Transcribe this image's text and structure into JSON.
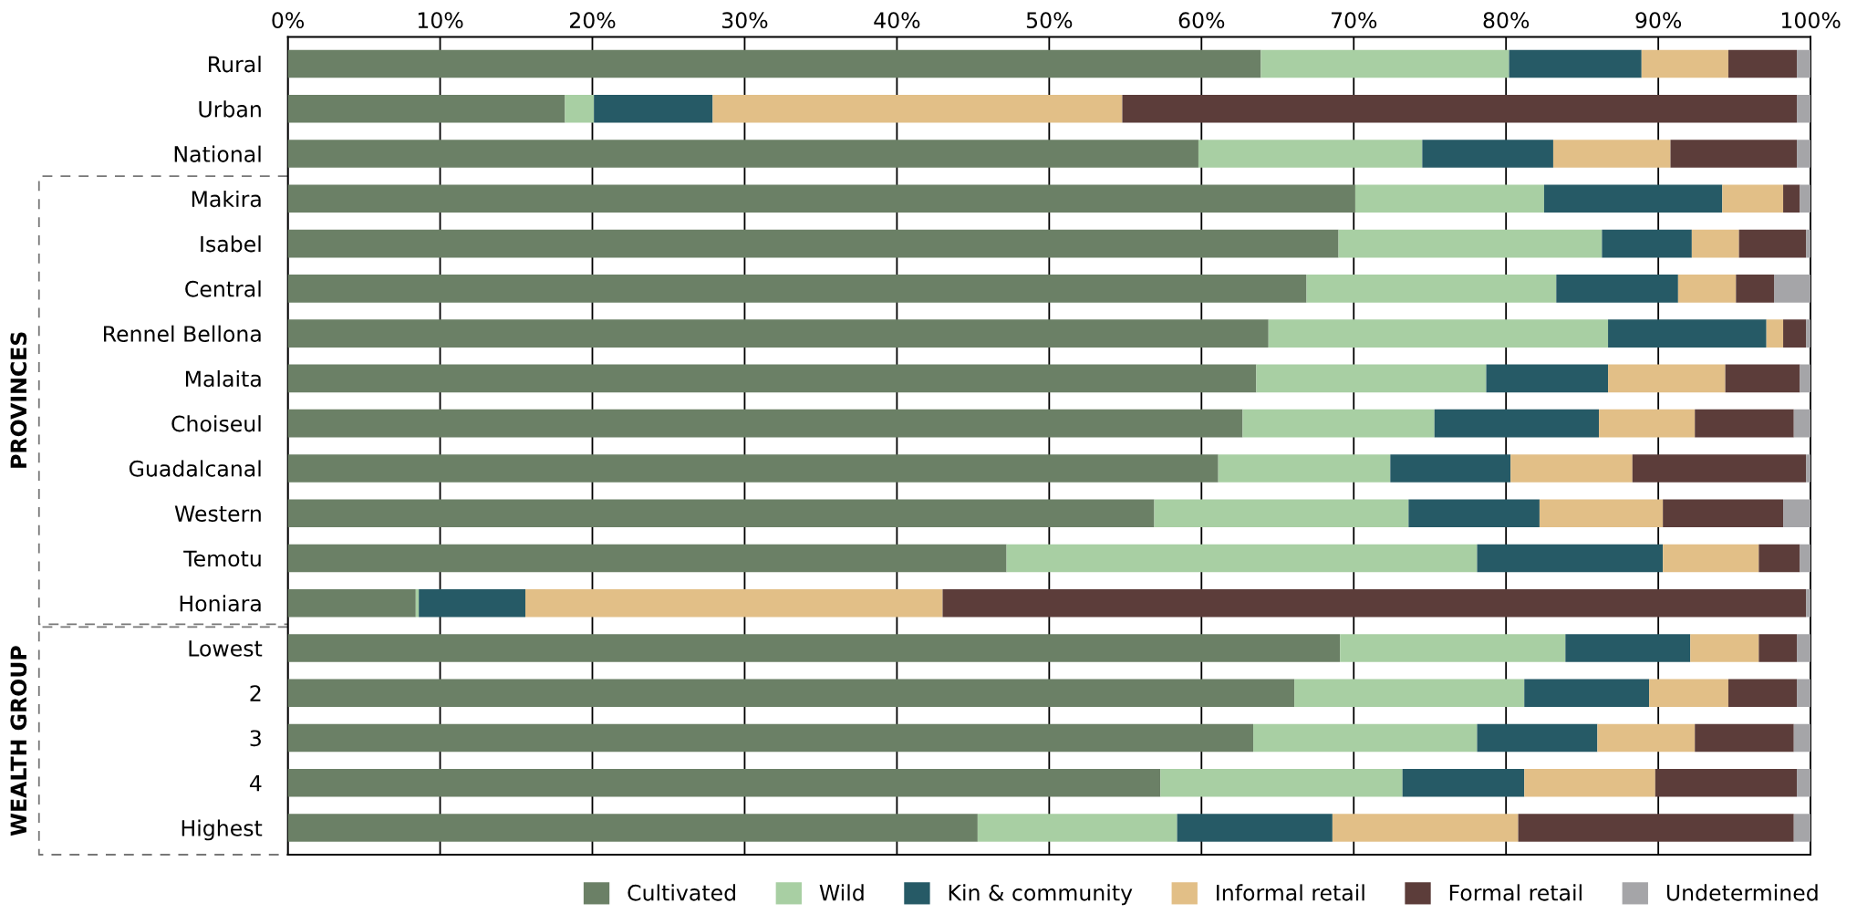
{
  "chart_data": {
    "type": "bar",
    "orientation": "horizontal",
    "stacked": true,
    "categories": [
      "Rural",
      "Urban",
      "National",
      "Makira",
      "Isabel",
      "Central",
      "Rennel Bellona",
      "Malaita",
      "Choiseul",
      "Guadalcanal",
      "Western",
      "Temotu",
      "Honiara",
      "Lowest",
      "2",
      "3",
      "4",
      "Highest"
    ],
    "series": [
      {
        "name": "Cultivated",
        "color": "#6b8066",
        "values": [
          63.9,
          18.2,
          59.8,
          70.1,
          69.0,
          66.9,
          64.4,
          63.6,
          62.7,
          61.1,
          56.9,
          47.2,
          8.4,
          69.1,
          66.1,
          63.4,
          57.3,
          45.3
        ]
      },
      {
        "name": "Wild",
        "color": "#a8cfa3",
        "values": [
          16.3,
          1.9,
          14.7,
          12.4,
          17.3,
          16.4,
          22.3,
          15.1,
          12.6,
          11.3,
          16.7,
          30.9,
          0.2,
          14.8,
          15.1,
          14.7,
          15.9,
          13.1
        ]
      },
      {
        "name": "Kin & community",
        "color": "#265a66",
        "values": [
          8.7,
          7.8,
          8.6,
          11.7,
          5.9,
          8.0,
          10.4,
          8.0,
          10.8,
          7.9,
          8.6,
          12.2,
          7.0,
          8.2,
          8.2,
          7.9,
          8.0,
          10.2
        ]
      },
      {
        "name": "Informal retail",
        "color": "#e2bf87",
        "values": [
          5.7,
          26.9,
          7.7,
          4.0,
          3.1,
          3.8,
          1.1,
          7.7,
          6.3,
          8.0,
          8.1,
          6.3,
          27.4,
          4.5,
          5.2,
          6.4,
          8.6,
          12.2
        ]
      },
      {
        "name": "Formal retail",
        "color": "#5c3d3a",
        "values": [
          4.5,
          44.3,
          8.3,
          1.1,
          4.4,
          2.5,
          1.5,
          4.9,
          6.5,
          11.4,
          7.9,
          2.7,
          56.7,
          2.5,
          4.5,
          6.5,
          9.3,
          18.1
        ]
      },
      {
        "name": "Undetermined",
        "color": "#a5a5a8",
        "values": [
          0.9,
          0.9,
          0.9,
          0.7,
          0.3,
          2.4,
          0.3,
          0.7,
          1.1,
          0.3,
          1.8,
          0.7,
          0.3,
          0.9,
          0.9,
          1.1,
          0.9,
          1.1
        ]
      }
    ],
    "xlim": [
      0,
      100
    ],
    "xticks": [
      {
        "value": 0,
        "label": "0%"
      },
      {
        "value": 10,
        "label": "10%"
      },
      {
        "value": 20,
        "label": "20%"
      },
      {
        "value": 30,
        "label": "30%"
      },
      {
        "value": 40,
        "label": "40%"
      },
      {
        "value": 50,
        "label": "50%"
      },
      {
        "value": 60,
        "label": "60%"
      },
      {
        "value": 70,
        "label": "70%"
      },
      {
        "value": 80,
        "label": "80%"
      },
      {
        "value": 90,
        "label": "90%"
      },
      {
        "value": 100,
        "label": "100%"
      }
    ],
    "grid": "x",
    "legend": "bottom",
    "annotations": [
      "PROVINCES",
      "WEALTH GROUP"
    ]
  }
}
